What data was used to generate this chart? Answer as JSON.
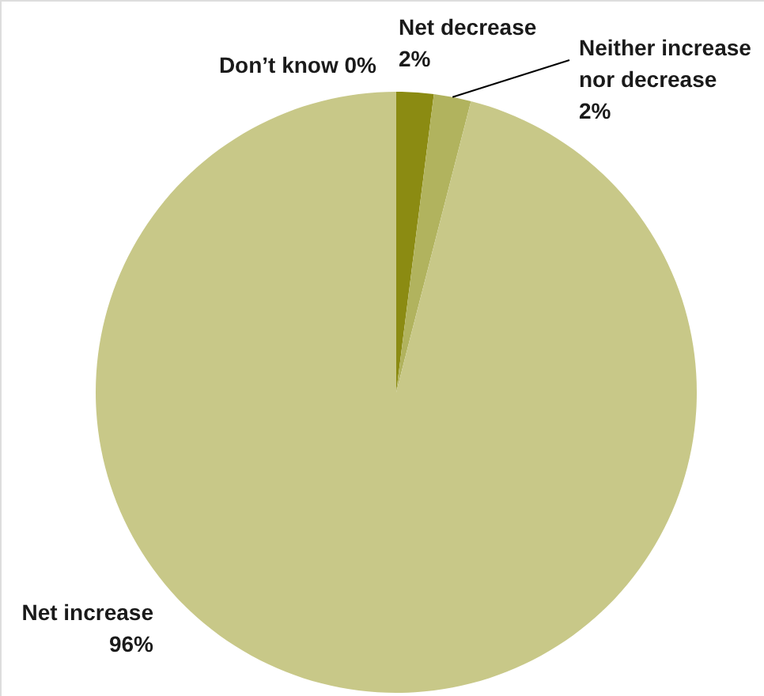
{
  "chart_data": {
    "type": "pie",
    "categories": [
      "Net decrease",
      "Neither increase nor decrease",
      "Net increase",
      "Don’t know"
    ],
    "values": [
      2,
      2,
      96,
      0
    ],
    "value_labels": [
      "2%",
      "2%",
      "96%",
      "0%"
    ],
    "colors": [
      "#8b8b12",
      "#b1b35e",
      "#c8c888",
      "#6b6b10"
    ]
  }
}
